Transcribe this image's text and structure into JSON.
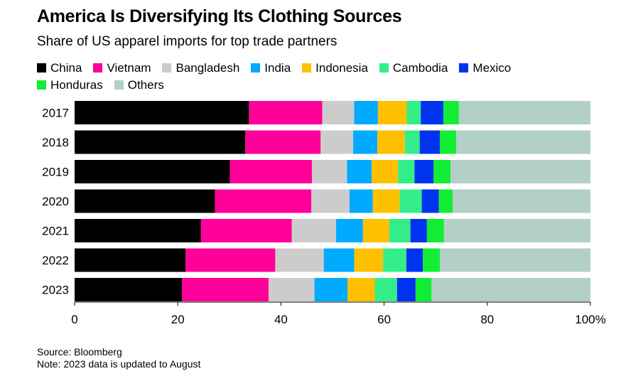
{
  "title": "America Is Diversifying Its Clothing Sources",
  "subtitle": "Share of US apparel imports for top trade partners",
  "footer": {
    "source": "Source: Bloomberg",
    "note": "Note: 2023 data is updated to August"
  },
  "chart_data": {
    "type": "bar",
    "orientation": "horizontal",
    "stacked": true,
    "title": "America Is Diversifying Its Clothing Sources",
    "subtitle": "Share of US apparel imports for top trade partners",
    "categories": [
      "2017",
      "2018",
      "2019",
      "2020",
      "2021",
      "2022",
      "2023"
    ],
    "xlim": [
      0,
      100
    ],
    "x_ticks": [
      0,
      20,
      40,
      60,
      80,
      100
    ],
    "x_tick_labels": [
      "0",
      "20",
      "40",
      "60",
      "80",
      "100%"
    ],
    "legend_position": "top",
    "grid": false,
    "series": [
      {
        "name": "China",
        "color": "#000000",
        "values": [
          33.8,
          33.1,
          30.1,
          27.2,
          24.5,
          21.5,
          20.8
        ]
      },
      {
        "name": "Vietnam",
        "color": "#ff0099",
        "values": [
          14.2,
          14.6,
          15.9,
          18.7,
          17.6,
          17.4,
          16.8
        ]
      },
      {
        "name": "Bangladesh",
        "color": "#cccccc",
        "values": [
          6.2,
          6.3,
          6.8,
          7.4,
          8.6,
          9.4,
          8.9
        ]
      },
      {
        "name": "India",
        "color": "#00aaff",
        "values": [
          4.6,
          4.7,
          4.8,
          4.5,
          5.2,
          5.9,
          6.4
        ]
      },
      {
        "name": "Indonesia",
        "color": "#ffc000",
        "values": [
          5.6,
          5.3,
          5.1,
          5.2,
          5.1,
          5.6,
          5.3
        ]
      },
      {
        "name": "Cambodia",
        "color": "#33ee88",
        "values": [
          2.7,
          2.9,
          3.2,
          4.3,
          4.1,
          4.5,
          4.3
        ]
      },
      {
        "name": "Mexico",
        "color": "#0033ee",
        "values": [
          4.4,
          3.9,
          3.7,
          3.3,
          3.2,
          3.2,
          3.6
        ]
      },
      {
        "name": "Honduras",
        "color": "#11ee33",
        "values": [
          3.0,
          3.2,
          3.3,
          2.7,
          3.3,
          3.3,
          3.1
        ]
      },
      {
        "name": "Others",
        "color": "#b2cfc8",
        "values": [
          25.5,
          26.0,
          27.1,
          26.7,
          28.4,
          29.2,
          30.8
        ]
      }
    ]
  }
}
